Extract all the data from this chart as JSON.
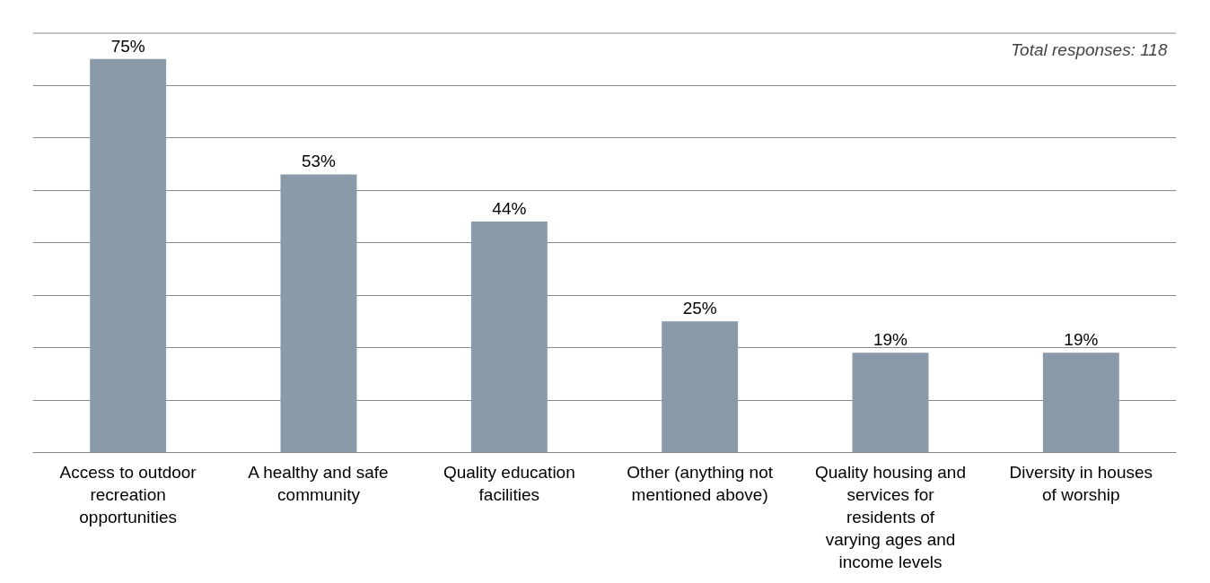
{
  "chart_data": {
    "type": "bar",
    "categories": [
      "Access to outdoor recreation opportunities",
      "A healthy and safe community",
      "Quality education facilities",
      "Other (anything not mentioned above)",
      "Quality housing and services for residents of varying ages and income levels",
      "Diversity in houses of worship"
    ],
    "values": [
      75,
      53,
      44,
      25,
      19,
      19
    ],
    "value_labels": [
      "75%",
      "53%",
      "44%",
      "25%",
      "19%",
      "19%"
    ],
    "color": "#8a9aa9",
    "ylim": [
      0,
      80
    ],
    "yticks": [
      {
        "value": 0,
        "label": null
      },
      {
        "value": 10,
        "label": null
      },
      {
        "value": 20,
        "label": null
      },
      {
        "value": 30,
        "label": null
      },
      {
        "value": 40,
        "label": null
      },
      {
        "value": 50,
        "label": null
      },
      {
        "value": 60,
        "label": null
      },
      {
        "value": 70,
        "label": null
      },
      {
        "value": 80,
        "label": null
      }
    ],
    "grid": "y",
    "tick_labels": "x",
    "annotations": [
      "Total responses: 118"
    ]
  }
}
